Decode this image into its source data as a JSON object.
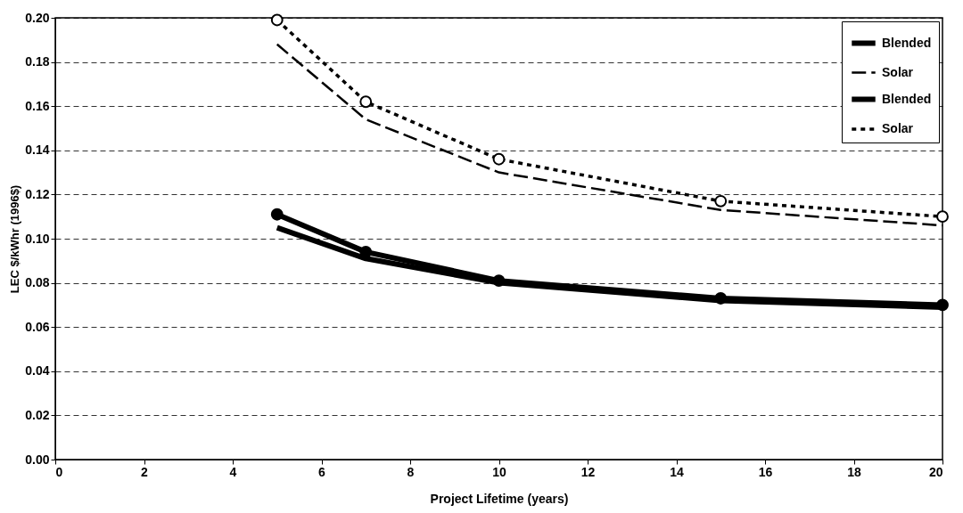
{
  "chart_data": {
    "type": "line",
    "xlabel": "Project Lifetime (years)",
    "ylabel": "LEC $/kWhr (1996$)",
    "x": [
      5,
      7,
      10,
      15,
      20
    ],
    "series": [
      {
        "name": "Blended",
        "color": "#000000",
        "line_style": "solid",
        "marker": "none",
        "values": [
          0.105,
          0.091,
          0.08,
          0.072,
          0.069
        ]
      },
      {
        "name": "Solar",
        "color": "#000000",
        "line_style": "dashed",
        "marker": "none",
        "values": [
          0.188,
          0.154,
          0.13,
          0.113,
          0.106
        ]
      },
      {
        "name": "Blended",
        "color": "#000000",
        "line_style": "solid",
        "marker": "circle",
        "values": [
          0.111,
          0.094,
          0.081,
          0.073,
          0.07
        ]
      },
      {
        "name": "Solar",
        "color": "#000000",
        "line_style": "dotted",
        "marker": "circle",
        "values": [
          0.199,
          0.162,
          0.136,
          0.117,
          0.11
        ]
      }
    ],
    "xlim": [
      0,
      20
    ],
    "xticks": [
      0,
      2,
      4,
      6,
      8,
      10,
      12,
      14,
      16,
      18,
      20
    ],
    "ylim": [
      0,
      0.2
    ],
    "yticks": [
      {
        "value": 0,
        "label": "0.00"
      },
      0.02,
      0.04,
      0.06,
      0.08,
      {
        "value": 0.1,
        "label": "0.10"
      },
      0.12,
      0.14,
      0.16,
      0.18,
      {
        "value": 0.2,
        "label": "0.20"
      }
    ],
    "grid": "y",
    "legend": "top right"
  }
}
